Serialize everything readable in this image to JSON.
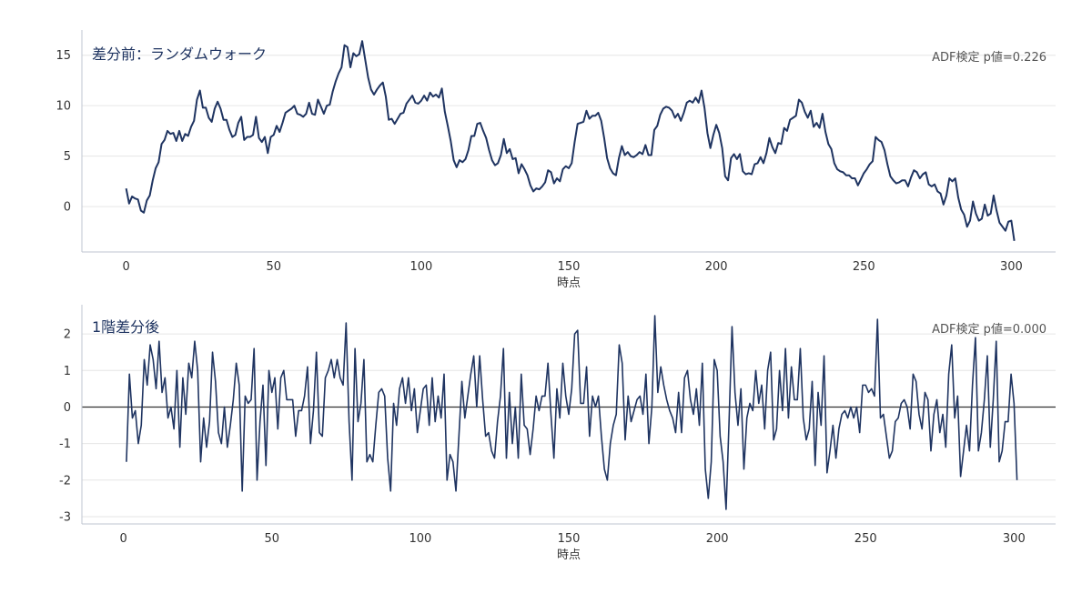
{
  "colors": {
    "line": "#1f3461",
    "grid": "#e6e6e6",
    "axis": "#bfc6d0",
    "zero_line": "#333333"
  },
  "chart_data": [
    {
      "type": "line",
      "title": "差分前：ランダムウォーク",
      "annotation": "ADF検定 p値=0.226",
      "xlabel": "時点",
      "ylabel": "",
      "xlim": [
        -15,
        315
      ],
      "ylim": [
        -4.5,
        17.5
      ],
      "xticks": [
        0,
        50,
        100,
        150,
        200,
        250,
        300
      ],
      "yticks": [
        0,
        5,
        10,
        15
      ],
      "grid": true,
      "series": [
        {
          "x0": 0,
          "values": [
            1.8,
            0.3,
            1.0,
            0.8,
            0.7,
            -0.4,
            -0.6,
            0.6,
            1.1,
            2.6,
            3.8,
            4.4,
            6.2,
            6.6,
            7.5,
            7.2,
            7.3,
            6.5,
            7.5,
            6.5,
            7.2,
            7.0,
            7.9,
            8.5,
            10.6,
            11.5,
            9.8,
            9.8,
            8.8,
            8.4,
            9.7,
            10.4,
            9.7,
            8.6,
            8.6,
            7.6,
            6.9,
            7.1,
            8.3,
            8.9,
            6.6,
            6.9,
            6.9,
            7.1,
            8.9,
            6.8,
            6.4,
            6.9,
            5.3,
            6.9,
            7.1,
            8.0,
            7.4,
            8.3,
            9.3,
            9.5,
            9.7,
            10.0,
            9.2,
            9.1,
            8.9,
            9.2,
            10.3,
            9.2,
            9.1,
            10.6,
            9.9,
            9.2,
            10.0,
            10.1,
            11.4,
            12.4,
            13.2,
            13.8,
            16.0,
            15.8,
            13.8,
            15.2,
            14.9,
            15.1,
            16.4,
            14.6,
            12.8,
            11.6,
            11.1,
            11.6,
            12.0,
            12.3,
            10.9,
            8.6,
            8.7,
            8.2,
            8.7,
            9.2,
            9.3,
            10.2,
            10.6,
            11.0,
            10.3,
            10.2,
            10.5,
            11.0,
            10.5,
            11.3,
            10.9,
            11.1,
            10.8,
            11.7,
            9.4,
            8.0,
            6.5,
            4.6,
            3.9,
            4.6,
            4.4,
            4.7,
            5.6,
            7.0,
            7.0,
            8.2,
            8.3,
            7.5,
            6.8,
            5.6,
            4.6,
            4.1,
            4.3,
            5.1,
            6.7,
            5.3,
            5.7,
            4.7,
            4.8,
            3.3,
            4.2,
            3.7,
            3.1,
            2.1,
            1.5,
            1.8,
            1.7,
            2.0,
            2.4,
            3.6,
            3.4,
            2.3,
            2.8,
            2.5,
            3.7,
            4.0,
            3.8,
            4.3,
            6.4,
            8.2,
            8.3,
            8.4,
            9.5,
            8.7,
            9.0,
            9.0,
            9.3,
            8.5,
            6.8,
            4.8,
            3.8,
            3.3,
            3.1,
            4.8,
            6.0,
            5.1,
            5.4,
            5.0,
            4.9,
            5.1,
            5.4,
            5.2,
            6.1,
            5.1,
            5.1,
            7.6,
            8.0,
            9.1,
            9.7,
            9.9,
            9.8,
            9.5,
            8.8,
            9.2,
            8.5,
            9.3,
            10.3,
            10.5,
            10.3,
            10.8,
            10.3,
            11.5,
            9.8,
            7.3,
            5.8,
            7.1,
            8.1,
            7.3,
            5.8,
            3.0,
            2.6,
            4.8,
            5.2,
            4.7,
            5.2,
            3.5,
            3.2,
            3.3,
            3.2,
            4.2,
            4.3,
            4.9,
            4.3,
            5.3,
            6.8,
            5.9,
            5.3,
            6.3,
            6.2,
            7.8,
            7.5,
            8.6,
            8.8,
            9.0,
            10.6,
            10.3,
            9.4,
            8.8,
            9.5,
            7.9,
            8.3,
            7.8,
            9.2,
            7.4,
            6.2,
            5.7,
            4.3,
            3.7,
            3.5,
            3.4,
            3.1,
            3.1,
            2.8,
            2.8,
            2.1,
            2.7,
            3.3,
            3.7,
            4.2,
            4.5,
            6.9,
            6.6,
            6.4,
            5.6,
            4.2,
            3.0,
            2.6,
            2.3,
            2.4,
            2.6,
            2.6,
            2.0,
            2.9,
            3.6,
            3.4,
            2.8,
            3.2,
            3.4,
            2.2,
            2.0,
            2.2,
            1.5,
            1.3,
            0.2,
            1.1,
            2.8,
            2.5,
            2.8,
            0.9,
            -0.3,
            -0.8,
            -2.0,
            -1.4,
            0.5,
            -0.7,
            -1.4,
            -1.2,
            0.2,
            -0.9,
            -0.7,
            1.1,
            -0.4,
            -1.6,
            -2.0,
            -2.4,
            -1.5,
            -1.4,
            -3.4
          ]
        }
      ]
    },
    {
      "type": "line",
      "title": "1階差分後",
      "annotation": "ADF検定 p値=0.000",
      "xlabel": "時点",
      "ylabel": "",
      "xlim": [
        -14,
        314
      ],
      "ylim": [
        -3.2,
        2.8
      ],
      "xticks": [
        0,
        50,
        100,
        150,
        200,
        250,
        300
      ],
      "yticks": [
        -3,
        -2,
        -1,
        0,
        1,
        2
      ],
      "grid": true,
      "zero_line": true,
      "series": [
        {
          "x0": 1,
          "values": [
            -1.5,
            0.9,
            -0.3,
            -0.1,
            -1.0,
            -0.5,
            1.3,
            0.6,
            1.7,
            1.3,
            0.5,
            1.8,
            0.4,
            0.8,
            -0.3,
            0.0,
            -0.6,
            1.0,
            -1.1,
            0.8,
            -0.2,
            1.2,
            0.8,
            1.8,
            1.0,
            -1.5,
            -0.3,
            -1.1,
            -0.4,
            1.5,
            0.7,
            -0.7,
            -1.0,
            0.0,
            -1.1,
            -0.5,
            0.2,
            1.2,
            0.6,
            -2.3,
            0.3,
            0.1,
            0.2,
            1.6,
            -2.0,
            -0.4,
            0.6,
            -1.6,
            1.0,
            0.4,
            0.8,
            -0.6,
            0.8,
            1.0,
            0.2,
            0.2,
            0.2,
            -0.8,
            -0.1,
            -0.1,
            0.3,
            1.1,
            -1.0,
            -0.1,
            1.5,
            -0.7,
            -0.8,
            0.8,
            1.0,
            1.3,
            0.8,
            1.3,
            0.8,
            0.6,
            2.3,
            -0.4,
            -2.0,
            1.6,
            -0.4,
            0.1,
            1.3,
            -1.5,
            -1.3,
            -1.5,
            -0.5,
            0.4,
            0.5,
            0.3,
            -1.4,
            -2.3,
            0.1,
            -0.5,
            0.5,
            0.8,
            0.1,
            0.8,
            -0.1,
            0.5,
            -0.7,
            -0.1,
            0.5,
            0.6,
            -0.5,
            0.8,
            -0.4,
            0.3,
            -0.3,
            0.9,
            -2.0,
            -1.3,
            -1.5,
            -2.3,
            -0.8,
            0.7,
            -0.3,
            0.3,
            0.9,
            1.4,
            0.0,
            1.4,
            0.2,
            -0.8,
            -0.7,
            -1.2,
            -1.4,
            -0.4,
            0.3,
            1.6,
            -1.4,
            0.4,
            -1.0,
            0.0,
            -1.4,
            0.9,
            -0.5,
            -0.6,
            -1.3,
            -0.6,
            0.3,
            -0.1,
            0.3,
            0.3,
            1.2,
            -0.2,
            -1.4,
            0.5,
            -0.3,
            1.2,
            0.3,
            -0.2,
            0.5,
            2.0,
            2.1,
            0.1,
            0.1,
            1.1,
            -0.8,
            0.3,
            0.0,
            0.3,
            -0.8,
            -1.7,
            -2.0,
            -1.0,
            -0.5,
            -0.2,
            1.7,
            1.2,
            -0.9,
            0.3,
            -0.4,
            -0.1,
            0.2,
            0.3,
            -0.2,
            0.9,
            -1.0,
            0.0,
            2.5,
            0.4,
            1.1,
            0.6,
            0.2,
            -0.1,
            -0.3,
            -0.7,
            0.4,
            -0.7,
            0.8,
            1.0,
            0.2,
            -0.2,
            0.5,
            -0.5,
            1.2,
            -1.7,
            -2.5,
            -1.5,
            1.3,
            1.0,
            -0.8,
            -1.5,
            -2.8,
            -0.4,
            2.2,
            0.4,
            -0.5,
            0.5,
            -1.7,
            -0.3,
            0.1,
            -0.1,
            1.0,
            0.1,
            0.6,
            -0.6,
            1.0,
            1.5,
            -0.9,
            -0.6,
            1.0,
            -0.1,
            1.6,
            -0.3,
            1.1,
            0.2,
            0.2,
            1.6,
            -0.3,
            -0.9,
            -0.6,
            0.7,
            -1.6,
            0.4,
            -0.5,
            1.4,
            -1.8,
            -1.2,
            -0.5,
            -1.4,
            -0.6,
            -0.2,
            -0.1,
            -0.3,
            0.0,
            -0.3,
            0.0,
            -0.7,
            0.6,
            0.6,
            0.4,
            0.5,
            0.3,
            2.4,
            -0.3,
            -0.2,
            -0.8,
            -1.4,
            -1.2,
            -0.4,
            -0.3,
            0.1,
            0.2,
            0.0,
            -0.6,
            0.9,
            0.7,
            -0.2,
            -0.6,
            0.4,
            0.2,
            -1.2,
            -0.2,
            0.2,
            -0.7,
            -0.2,
            -1.1,
            0.9,
            1.7,
            -0.3,
            0.3,
            -1.9,
            -1.2,
            -0.5,
            -1.2,
            0.6,
            1.9,
            -1.2,
            -0.7,
            0.2,
            1.4,
            -1.1,
            0.2,
            1.8,
            -1.5,
            -1.2,
            -0.4,
            -0.4,
            0.9,
            0.1,
            -2.0
          ]
        }
      ]
    }
  ]
}
